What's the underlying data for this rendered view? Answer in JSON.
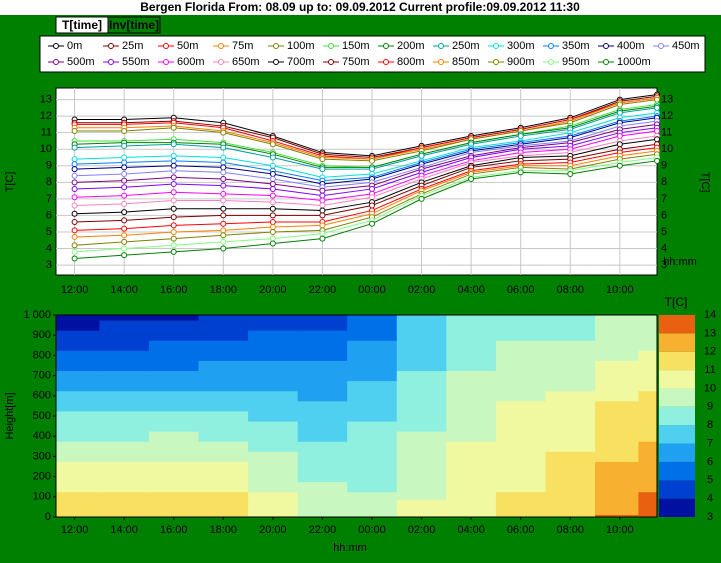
{
  "window": {
    "title": "Bergen Florida  From: 08.09 up to: 09.09.2012 Current profile:09.09.2012 11:30",
    "tabs": [
      "T[time]",
      "Inv[time]"
    ]
  },
  "chart_data": [
    {
      "type": "line",
      "xlabel": "hh:mm",
      "ylabel": "T[C]",
      "x": [
        0,
        2,
        4,
        6,
        8,
        10,
        12,
        14,
        16,
        18,
        20,
        22,
        23.5
      ],
      "xlim": [
        -0.75,
        23.5
      ],
      "xticks": [
        {
          "value": 0,
          "label": "12:00"
        },
        {
          "value": 2,
          "label": "14:00"
        },
        {
          "value": 4,
          "label": "16:00"
        },
        {
          "value": 6,
          "label": "18:00"
        },
        {
          "value": 8,
          "label": "20:00"
        },
        {
          "value": 10,
          "label": "22:00"
        },
        {
          "value": 12,
          "label": "00:00"
        },
        {
          "value": 14,
          "label": "02:00"
        },
        {
          "value": 16,
          "label": "04:00"
        },
        {
          "value": 18,
          "label": "06:00"
        },
        {
          "value": 20,
          "label": "08:00"
        },
        {
          "value": 22,
          "label": "10:00"
        }
      ],
      "ylim": [
        2.4,
        13.7
      ],
      "yticks": [
        3,
        4,
        5,
        6,
        7,
        8,
        9,
        10,
        11,
        12,
        13
      ],
      "grid": true,
      "series": [
        {
          "name": "0m",
          "color": "#000000",
          "values": [
            11.8,
            11.8,
            11.9,
            11.6,
            10.8,
            9.8,
            9.6,
            10.2,
            10.8,
            11.3,
            11.9,
            13.0,
            13.3
          ]
        },
        {
          "name": "25m",
          "color": "#800000",
          "values": [
            11.6,
            11.6,
            11.7,
            11.4,
            10.7,
            9.7,
            9.5,
            10.1,
            10.7,
            11.2,
            11.8,
            12.9,
            13.2
          ]
        },
        {
          "name": "50m",
          "color": "#ff0000",
          "values": [
            11.5,
            11.5,
            11.6,
            11.3,
            10.5,
            9.6,
            9.4,
            10.1,
            10.7,
            11.2,
            11.8,
            12.8,
            13.1
          ]
        },
        {
          "name": "75m",
          "color": "#ff8000",
          "values": [
            11.3,
            11.3,
            11.4,
            11.1,
            10.4,
            9.5,
            9.4,
            10.0,
            10.6,
            11.1,
            11.7,
            12.8,
            13.1
          ]
        },
        {
          "name": "100m",
          "color": "#808000",
          "values": [
            11.1,
            11.1,
            11.3,
            11.0,
            10.3,
            9.4,
            9.3,
            9.9,
            10.6,
            11.1,
            11.6,
            12.7,
            13.0
          ]
        },
        {
          "name": "150m",
          "color": "#40e040",
          "values": [
            10.5,
            10.5,
            10.6,
            10.4,
            9.8,
            9.0,
            8.9,
            9.7,
            10.4,
            10.9,
            11.4,
            12.4,
            12.7
          ]
        },
        {
          "name": "200m",
          "color": "#008000",
          "values": [
            10.3,
            10.4,
            10.4,
            10.3,
            9.7,
            8.9,
            8.9,
            9.7,
            10.4,
            10.9,
            11.3,
            12.3,
            12.6
          ]
        },
        {
          "name": "250m",
          "color": "#00a0a0",
          "values": [
            10.1,
            10.2,
            10.3,
            10.1,
            9.5,
            8.8,
            8.8,
            9.6,
            10.3,
            10.8,
            11.2,
            12.2,
            12.5
          ]
        },
        {
          "name": "300m",
          "color": "#00e0e0",
          "values": [
            9.4,
            9.5,
            9.6,
            9.5,
            9.0,
            8.3,
            8.5,
            9.3,
            10.1,
            10.5,
            11.0,
            11.9,
            12.2
          ]
        },
        {
          "name": "350m",
          "color": "#0080ff",
          "values": [
            9.1,
            9.2,
            9.3,
            9.2,
            8.7,
            8.1,
            8.3,
            9.2,
            10.0,
            10.4,
            10.8,
            11.7,
            12.0
          ]
        },
        {
          "name": "400m",
          "color": "#000080",
          "values": [
            8.8,
            8.9,
            9.0,
            8.9,
            8.5,
            7.9,
            8.2,
            9.1,
            9.9,
            10.3,
            10.7,
            11.6,
            11.9
          ]
        },
        {
          "name": "450m",
          "color": "#8080ff",
          "values": [
            8.4,
            8.5,
            8.7,
            8.6,
            8.2,
            7.7,
            8.0,
            8.9,
            9.8,
            10.2,
            10.5,
            11.4,
            11.7
          ]
        },
        {
          "name": "500m",
          "color": "#800080",
          "values": [
            8.0,
            8.1,
            8.3,
            8.2,
            7.9,
            7.5,
            7.8,
            8.8,
            9.6,
            10.1,
            10.4,
            11.2,
            11.5
          ]
        },
        {
          "name": "550m",
          "color": "#8000ff",
          "values": [
            7.6,
            7.7,
            7.9,
            7.8,
            7.6,
            7.2,
            7.6,
            8.6,
            9.5,
            10.0,
            10.2,
            11.0,
            11.3
          ]
        },
        {
          "name": "600m",
          "color": "#ff00ff",
          "values": [
            7.1,
            7.2,
            7.4,
            7.3,
            7.2,
            6.9,
            7.3,
            8.4,
            9.3,
            9.8,
            10.0,
            10.8,
            11.1
          ]
        },
        {
          "name": "650m",
          "color": "#ff80c0",
          "values": [
            6.6,
            6.7,
            6.9,
            6.9,
            6.8,
            6.6,
            7.1,
            8.2,
            9.2,
            9.6,
            9.8,
            10.5,
            10.8
          ]
        },
        {
          "name": "700m",
          "color": "#000000",
          "values": [
            6.1,
            6.2,
            6.4,
            6.4,
            6.4,
            6.3,
            6.8,
            8.0,
            9.0,
            9.5,
            9.6,
            10.3,
            10.6
          ]
        },
        {
          "name": "750m",
          "color": "#800000",
          "values": [
            5.6,
            5.7,
            5.9,
            6.0,
            6.0,
            6.0,
            6.6,
            7.8,
            8.9,
            9.3,
            9.4,
            10.0,
            10.3
          ]
        },
        {
          "name": "800m",
          "color": "#ff0000",
          "values": [
            5.1,
            5.2,
            5.4,
            5.5,
            5.6,
            5.6,
            6.3,
            7.6,
            8.7,
            9.1,
            9.2,
            9.8,
            10.1
          ]
        },
        {
          "name": "850m",
          "color": "#ff8000",
          "values": [
            4.7,
            4.8,
            5.0,
            5.1,
            5.3,
            5.4,
            6.1,
            7.5,
            8.6,
            9.0,
            9.0,
            9.6,
            9.9
          ]
        },
        {
          "name": "900m",
          "color": "#808000",
          "values": [
            4.2,
            4.4,
            4.6,
            4.8,
            5.0,
            5.1,
            5.9,
            7.3,
            8.5,
            8.9,
            8.8,
            9.4,
            9.7
          ]
        },
        {
          "name": "950m",
          "color": "#80ff80",
          "values": [
            3.8,
            4.0,
            4.2,
            4.4,
            4.6,
            4.9,
            5.7,
            7.2,
            8.3,
            8.7,
            8.7,
            9.2,
            9.5
          ]
        },
        {
          "name": "1000m",
          "color": "#008000",
          "values": [
            3.4,
            3.6,
            3.8,
            4.0,
            4.3,
            4.6,
            5.5,
            7.0,
            8.2,
            8.6,
            8.5,
            9.0,
            9.3
          ]
        }
      ]
    },
    {
      "type": "contour",
      "xlabel": "hh:mm",
      "ylabel": "Height[m]",
      "zlabel": "T[C]",
      "xlim": [
        -0.75,
        23.5
      ],
      "xticks": [
        {
          "value": 0,
          "label": "12:00"
        },
        {
          "value": 2,
          "label": "14:00"
        },
        {
          "value": 4,
          "label": "16:00"
        },
        {
          "value": 6,
          "label": "18:00"
        },
        {
          "value": 8,
          "label": "20:00"
        },
        {
          "value": 10,
          "label": "22:00"
        },
        {
          "value": 12,
          "label": "00:00"
        },
        {
          "value": 14,
          "label": "02:00"
        },
        {
          "value": 16,
          "label": "04:00"
        },
        {
          "value": 18,
          "label": "06:00"
        },
        {
          "value": 20,
          "label": "08:00"
        },
        {
          "value": 22,
          "label": "10:00"
        }
      ],
      "heights": [
        0,
        25,
        50,
        75,
        100,
        150,
        200,
        250,
        300,
        350,
        400,
        450,
        500,
        550,
        600,
        650,
        700,
        750,
        800,
        850,
        900,
        950,
        1000
      ],
      "ylim": [
        0,
        1000
      ],
      "yticks": [
        {
          "value": 1000,
          "label": "1 000"
        },
        900,
        800,
        700,
        600,
        500,
        400,
        300,
        200,
        100,
        0
      ],
      "zticks": [
        3,
        4,
        5,
        6,
        7,
        8,
        9,
        10,
        11,
        12,
        13,
        14
      ],
      "colors": [
        "#0010a0",
        "#0040d0",
        "#0070e8",
        "#20a0f0",
        "#50d0f0",
        "#90f0e0",
        "#c8f8c0",
        "#f0f8a0",
        "#f8e060",
        "#f8b030",
        "#e86010"
      ]
    }
  ]
}
